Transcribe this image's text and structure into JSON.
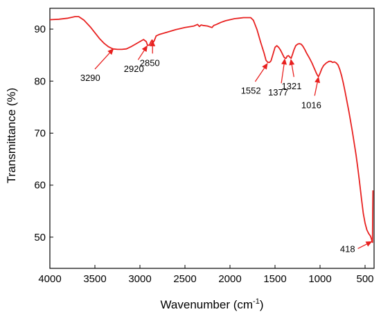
{
  "chart_data": {
    "type": "line",
    "xlabel": "Wavenumber (cm",
    "xlabel_sup": "-1",
    "xlabel_tail": ")",
    "ylabel": "Transmittance (%)",
    "xlim": [
      4000,
      400
    ],
    "ylim": [
      44,
      94
    ],
    "x_reversed": true,
    "grid": false,
    "color": "#e8201f",
    "x_ticks": [
      4000,
      3500,
      3000,
      2500,
      2000,
      1500,
      1000,
      500
    ],
    "y_ticks": [
      50,
      60,
      70,
      80,
      90
    ],
    "series": [
      {
        "points": [
          [
            4000,
            91.8
          ],
          [
            3900,
            91.9
          ],
          [
            3800,
            92.1
          ],
          [
            3720,
            92.4
          ],
          [
            3680,
            92.4
          ],
          [
            3620,
            91.7
          ],
          [
            3550,
            90.4
          ],
          [
            3500,
            89.3
          ],
          [
            3450,
            88.2
          ],
          [
            3400,
            87.3
          ],
          [
            3350,
            86.6
          ],
          [
            3300,
            86.2
          ],
          [
            3250,
            86.1
          ],
          [
            3200,
            86.1
          ],
          [
            3150,
            86.2
          ],
          [
            3100,
            86.6
          ],
          [
            3050,
            87.1
          ],
          [
            3000,
            87.6
          ],
          [
            2960,
            88.0
          ],
          [
            2930,
            87.6
          ],
          [
            2915,
            86.9
          ],
          [
            2895,
            86.9
          ],
          [
            2880,
            87.5
          ],
          [
            2865,
            87.9
          ],
          [
            2850,
            87.5
          ],
          [
            2840,
            87.8
          ],
          [
            2820,
            88.7
          ],
          [
            2780,
            89.0
          ],
          [
            2700,
            89.4
          ],
          [
            2600,
            89.9
          ],
          [
            2500,
            90.3
          ],
          [
            2400,
            90.6
          ],
          [
            2360,
            90.9
          ],
          [
            2340,
            90.5
          ],
          [
            2320,
            90.8
          ],
          [
            2300,
            90.7
          ],
          [
            2250,
            90.6
          ],
          [
            2200,
            90.3
          ],
          [
            2180,
            90.7
          ],
          [
            2150,
            90.9
          ],
          [
            2100,
            91.3
          ],
          [
            2050,
            91.6
          ],
          [
            2000,
            91.8
          ],
          [
            1950,
            92.0
          ],
          [
            1900,
            92.1
          ],
          [
            1850,
            92.2
          ],
          [
            1800,
            92.2
          ],
          [
            1770,
            92.2
          ],
          [
            1740,
            91.7
          ],
          [
            1700,
            89.9
          ],
          [
            1660,
            87.5
          ],
          [
            1620,
            85.3
          ],
          [
            1600,
            84.0
          ],
          [
            1580,
            83.6
          ],
          [
            1560,
            83.6
          ],
          [
            1545,
            83.9
          ],
          [
            1520,
            85.3
          ],
          [
            1500,
            86.5
          ],
          [
            1480,
            86.8
          ],
          [
            1460,
            86.5
          ],
          [
            1440,
            86.0
          ],
          [
            1420,
            85.3
          ],
          [
            1400,
            84.6
          ],
          [
            1385,
            84.4
          ],
          [
            1377,
            84.4
          ],
          [
            1365,
            84.8
          ],
          [
            1350,
            84.9
          ],
          [
            1335,
            84.6
          ],
          [
            1321,
            84.4
          ],
          [
            1305,
            85.2
          ],
          [
            1290,
            86.0
          ],
          [
            1270,
            86.8
          ],
          [
            1250,
            87.1
          ],
          [
            1230,
            87.2
          ],
          [
            1210,
            87.1
          ],
          [
            1190,
            86.7
          ],
          [
            1170,
            86.1
          ],
          [
            1150,
            85.4
          ],
          [
            1120,
            84.5
          ],
          [
            1090,
            83.5
          ],
          [
            1060,
            82.3
          ],
          [
            1040,
            81.5
          ],
          [
            1025,
            81.0
          ],
          [
            1016,
            80.9
          ],
          [
            1000,
            81.5
          ],
          [
            980,
            82.4
          ],
          [
            960,
            83.0
          ],
          [
            930,
            83.5
          ],
          [
            900,
            83.8
          ],
          [
            880,
            83.8
          ],
          [
            860,
            83.6
          ],
          [
            840,
            83.7
          ],
          [
            820,
            83.5
          ],
          [
            800,
            83.1
          ],
          [
            780,
            82.2
          ],
          [
            760,
            81.0
          ],
          [
            740,
            79.5
          ],
          [
            720,
            77.8
          ],
          [
            700,
            76.0
          ],
          [
            680,
            74.2
          ],
          [
            660,
            72.2
          ],
          [
            640,
            70.2
          ],
          [
            620,
            68.0
          ],
          [
            600,
            65.8
          ],
          [
            580,
            63.2
          ],
          [
            560,
            60.4
          ],
          [
            540,
            57.4
          ],
          [
            520,
            54.6
          ],
          [
            500,
            52.7
          ],
          [
            480,
            51.4
          ],
          [
            460,
            50.7
          ],
          [
            440,
            50.2
          ],
          [
            430,
            49.7
          ],
          [
            422,
            49.1
          ],
          [
            418,
            49.0
          ],
          [
            415,
            54.0
          ],
          [
            412,
            59.0
          ]
        ]
      }
    ],
    "annotations": [
      {
        "label": "3290",
        "peak_x": 3290,
        "peak_y": 86.3,
        "tail_x": 3500,
        "tail_y": 82.3
      },
      {
        "label": "2920",
        "peak_x": 2915,
        "peak_y": 86.9,
        "tail_x": 3020,
        "tail_y": 84.1
      },
      {
        "label": "2850",
        "peak_x": 2860,
        "peak_y": 87.9,
        "tail_x": 2860,
        "tail_y": 85.3
      },
      {
        "label": "1552",
        "peak_x": 1580,
        "peak_y": 83.5,
        "tail_x": 1720,
        "tail_y": 79.9
      },
      {
        "label": "1377",
        "peak_x": 1390,
        "peak_y": 84.4,
        "tail_x": 1430,
        "tail_y": 79.6
      },
      {
        "label": "1321",
        "peak_x": 1325,
        "peak_y": 84.3,
        "tail_x": 1290,
        "tail_y": 80.8
      },
      {
        "label": "1016",
        "peak_x": 1016,
        "peak_y": 80.9,
        "tail_x": 1060,
        "tail_y": 77.2
      },
      {
        "label": "418",
        "peak_x": 420,
        "peak_y": 49.2,
        "tail_x": 580,
        "tail_y": 47.8
      }
    ]
  }
}
